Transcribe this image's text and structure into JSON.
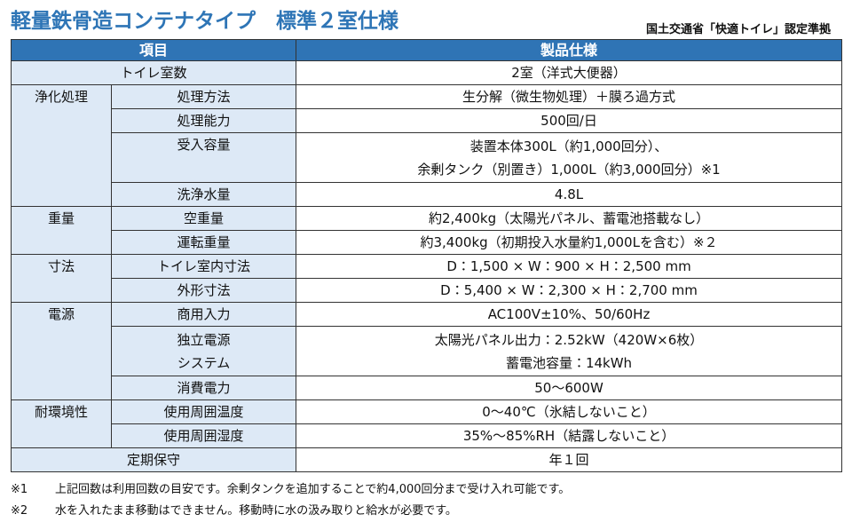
{
  "header": {
    "title": "軽量鉄骨造コンテナタイプ　標準２室仕様",
    "certification": "国土交通省「快適トイレ」認定準拠"
  },
  "table": {
    "headers": [
      "項目",
      "製品仕様"
    ],
    "rows": [
      {
        "item": [
          "トイレ室数"
        ],
        "spec": [
          "2室（洋式大便器）"
        ]
      },
      {
        "group": "浄化処理",
        "item": [
          "処理方法"
        ],
        "spec": [
          "生分解（微生物処理）＋膜ろ過方式"
        ]
      },
      {
        "item": [
          "処理能力"
        ],
        "spec": [
          "500回/日"
        ]
      },
      {
        "item": [
          "受入容量"
        ],
        "spec": [
          "装置本体300L（約1,000回分）、",
          "余剰タンク（別置き）1,000L（約3,000回分）※1"
        ]
      },
      {
        "item": [
          "洗浄水量"
        ],
        "spec": [
          "4.8L"
        ]
      },
      {
        "group": "重量",
        "item": [
          "空重量"
        ],
        "spec": [
          "約2,400kg（太陽光パネル、蓄電池搭載なし）"
        ]
      },
      {
        "item": [
          "運転重量"
        ],
        "spec": [
          "約3,400kg（初期投入水量約1,000Lを含む）※２"
        ]
      },
      {
        "group": "寸法",
        "item": [
          "トイレ室内寸法"
        ],
        "spec": [
          "D：1,500 × W：900 × H：2,500 mm"
        ]
      },
      {
        "item": [
          "外形寸法"
        ],
        "spec": [
          "D：5,400 × W：2,300 × H：2,700 mm"
        ]
      },
      {
        "group": "電源",
        "item": [
          "商用入力"
        ],
        "spec": [
          "AC100V±10%、50/60Hz"
        ]
      },
      {
        "item": [
          "独立電源",
          "システム"
        ],
        "spec": [
          "太陽光パネル出力：2.52kW（420W×6枚）",
          "蓄電池容量：14kWh"
        ]
      },
      {
        "item": [
          "消費電力"
        ],
        "spec": [
          "50～600W"
        ]
      },
      {
        "group": "耐環境性",
        "item": [
          "使用周囲温度"
        ],
        "spec": [
          "0～40℃（氷結しないこと）"
        ]
      },
      {
        "item": [
          "使用周囲湿度"
        ],
        "spec": [
          "35%～85%RH（結露しないこと）"
        ]
      },
      {
        "item": [
          "定期保守"
        ],
        "spec": [
          "年１回"
        ]
      }
    ]
  },
  "notes": [
    {
      "mark": "※1",
      "text": "上記回数は利用回数の目安です。余剰タンクを追加することで約4,000回分まで受け入れ可能です。"
    },
    {
      "mark": "※2",
      "text": "水を入れたまま移動はできません。移動時に水の汲み取りと給水が必要です。"
    }
  ]
}
